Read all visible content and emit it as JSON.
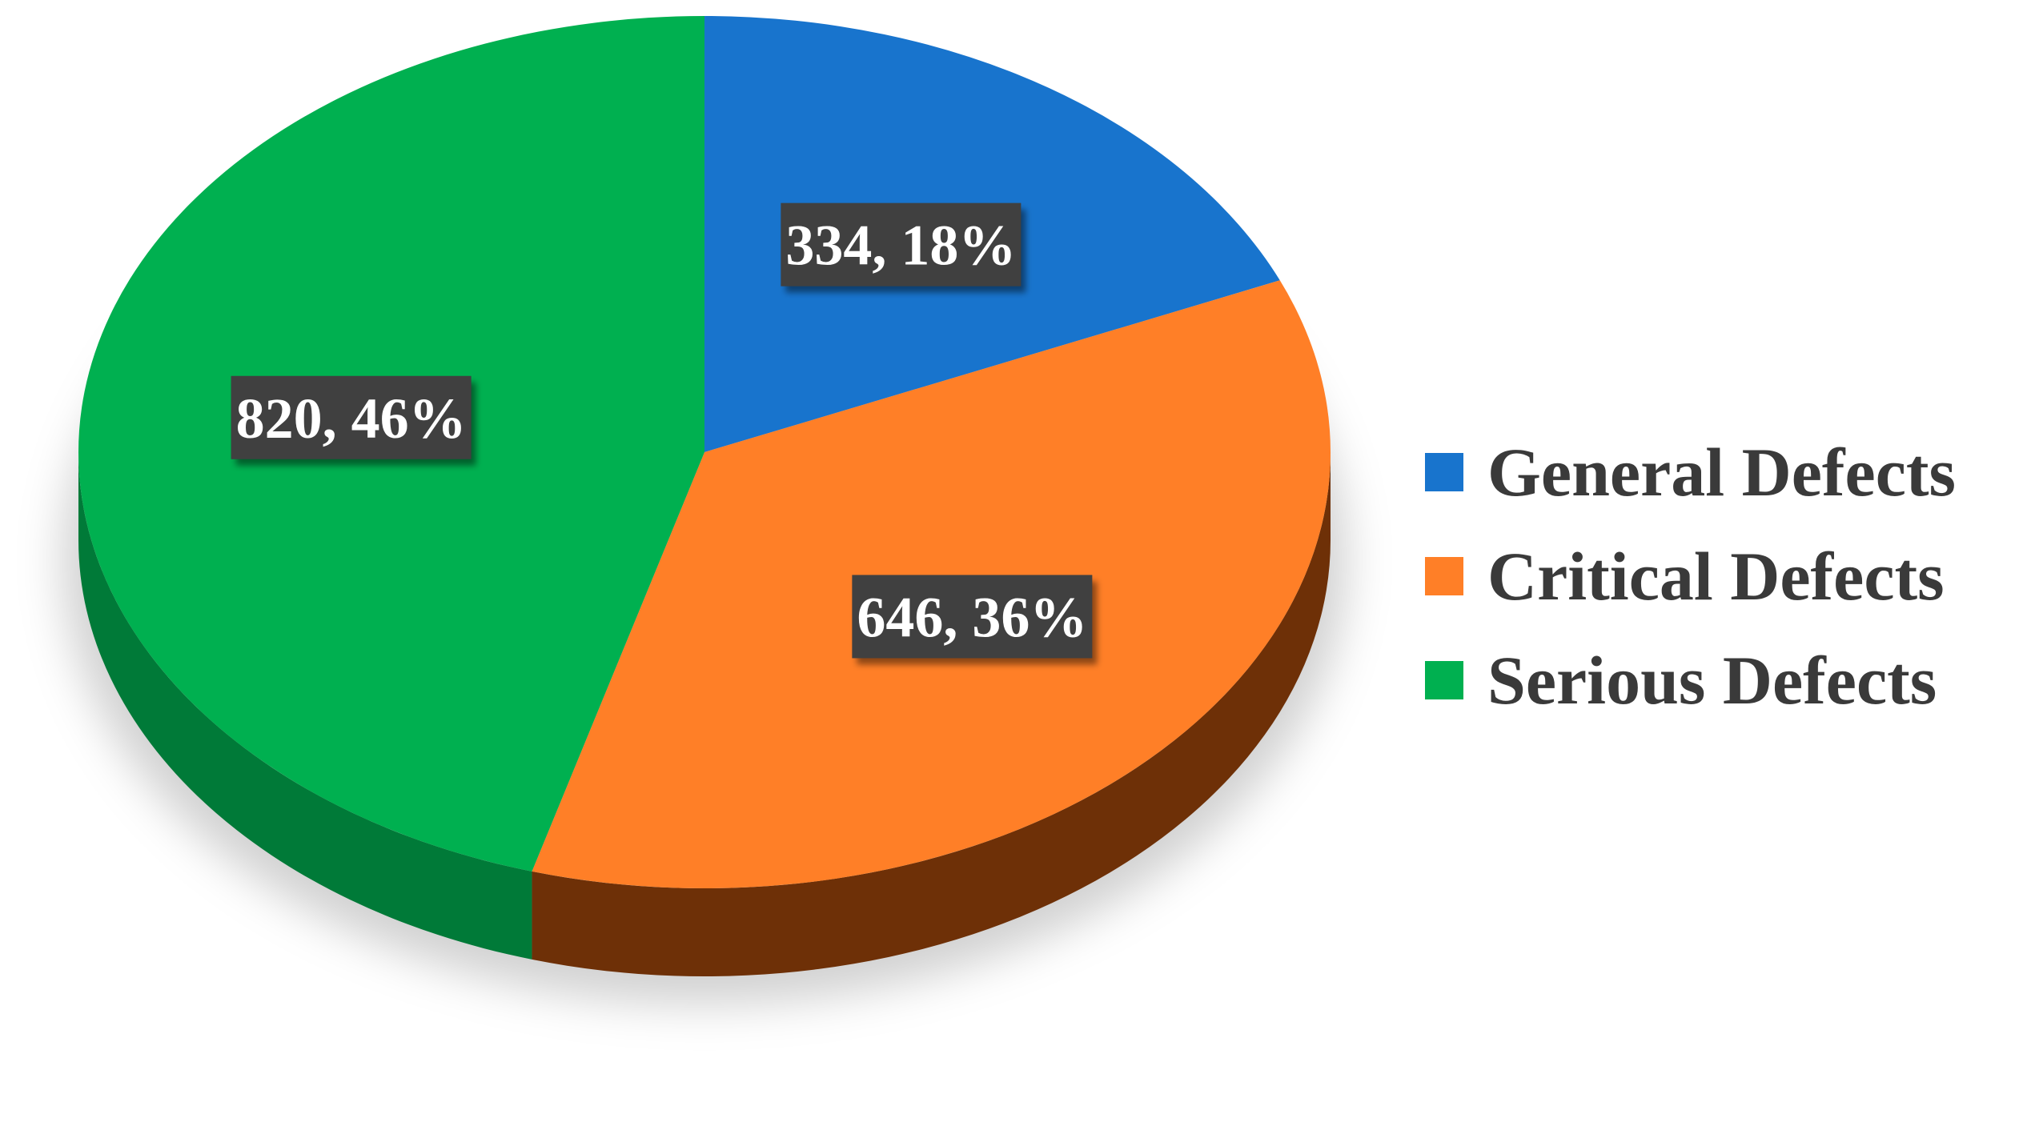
{
  "chart_data": {
    "type": "pie",
    "title": "",
    "categories": [
      "General Defects",
      "Critical Defects",
      "Serious Defects"
    ],
    "values": [
      334,
      646,
      820
    ],
    "percentages": [
      18,
      36,
      46
    ],
    "data_labels": [
      "334, 18%",
      "646, 36%",
      "820, 46%"
    ],
    "colors": [
      "#1874CD",
      "#FF7F27",
      "#00B050"
    ],
    "side_colors": [
      "#0F4E8A",
      "#6E3007",
      "#007A38"
    ],
    "legend_position": "right",
    "style": "3d",
    "start_angle": "12 o'clock",
    "direction": "clockwise"
  },
  "legend": {
    "items": [
      {
        "label": "General Defects",
        "color": "#1874CD"
      },
      {
        "label": "Critical Defects",
        "color": "#FF7F27"
      },
      {
        "label": "Serious Defects",
        "color": "#00B050"
      }
    ]
  }
}
